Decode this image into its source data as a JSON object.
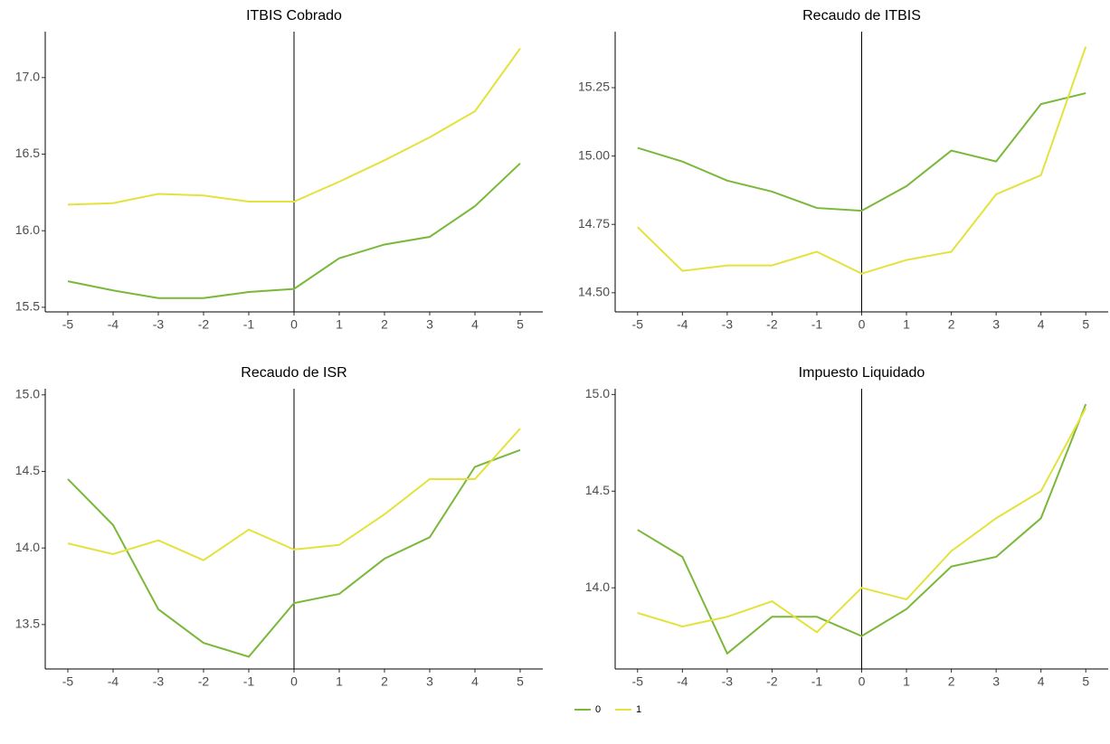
{
  "chart_data": [
    {
      "type": "line",
      "title": "ITBIS Cobrado",
      "x": [
        -5,
        -4,
        -3,
        -2,
        -1,
        0,
        1,
        2,
        3,
        4,
        5
      ],
      "xlim": [
        -5.5,
        5.5
      ],
      "xticks": [
        -5,
        -4,
        -3,
        -2,
        -1,
        0,
        1,
        2,
        3,
        4,
        5
      ],
      "ylim": [
        15.47,
        17.3
      ],
      "yticks": [
        15.5,
        {
          "value": 16,
          "label": "16.0"
        },
        16.5,
        {
          "value": 17,
          "label": "17.0"
        }
      ],
      "vline": 0,
      "legend": "bottom",
      "series": [
        {
          "name": "0",
          "color": "#7ab83a",
          "values": [
            15.67,
            15.61,
            15.56,
            15.56,
            15.6,
            15.62,
            15.82,
            15.91,
            15.96,
            16.16,
            16.44
          ]
        },
        {
          "name": "1",
          "color": "#e4e23c",
          "values": [
            16.17,
            16.18,
            16.24,
            16.23,
            16.19,
            16.19,
            16.32,
            16.46,
            16.61,
            16.78,
            17.19
          ]
        }
      ]
    },
    {
      "type": "line",
      "title": "Recaudo de ITBIS",
      "x": [
        -5,
        -4,
        -3,
        -2,
        -1,
        0,
        1,
        2,
        3,
        4,
        5
      ],
      "xlim": [
        -5.5,
        5.5
      ],
      "xticks": [
        -5,
        -4,
        -3,
        -2,
        -1,
        0,
        1,
        2,
        3,
        4,
        5
      ],
      "ylim": [
        14.43,
        15.455
      ],
      "yticks": [
        {
          "value": 14.5,
          "label": "14.50"
        },
        14.75,
        {
          "value": 15,
          "label": "15.00"
        },
        15.25
      ],
      "vline": 0,
      "series": [
        {
          "name": "0",
          "color": "#7ab83a",
          "values": [
            15.03,
            14.98,
            14.91,
            14.87,
            14.81,
            14.8,
            14.89,
            15.02,
            14.98,
            15.19,
            15.23
          ]
        },
        {
          "name": "1",
          "color": "#e4e23c",
          "values": [
            14.74,
            14.58,
            14.6,
            14.6,
            14.65,
            14.57,
            14.62,
            14.65,
            14.86,
            14.93,
            15.4
          ]
        }
      ]
    },
    {
      "type": "line",
      "title": "Recaudo de ISR",
      "x": [
        -5,
        -4,
        -3,
        -2,
        -1,
        0,
        1,
        2,
        3,
        4,
        5
      ],
      "xlim": [
        -5.5,
        5.5
      ],
      "xticks": [
        -5,
        -4,
        -3,
        -2,
        -1,
        0,
        1,
        2,
        3,
        4,
        5
      ],
      "ylim": [
        13.21,
        15.04
      ],
      "yticks": [
        13.5,
        {
          "value": 14,
          "label": "14.0"
        },
        14.5,
        {
          "value": 15,
          "label": "15.0"
        }
      ],
      "vline": 0,
      "series": [
        {
          "name": "0",
          "color": "#7ab83a",
          "values": [
            14.45,
            14.15,
            13.6,
            13.38,
            13.29,
            13.64,
            13.7,
            13.93,
            14.07,
            14.53,
            14.64
          ]
        },
        {
          "name": "1",
          "color": "#e4e23c",
          "values": [
            14.03,
            13.96,
            14.05,
            13.92,
            14.12,
            13.99,
            14.02,
            14.22,
            14.45,
            14.45,
            14.78
          ]
        }
      ]
    },
    {
      "type": "line",
      "title": "Impuesto Liquidado",
      "x": [
        -5,
        -4,
        -3,
        -2,
        -1,
        0,
        1,
        2,
        3,
        4,
        5
      ],
      "xlim": [
        -5.5,
        5.5
      ],
      "xticks": [
        -5,
        -4,
        -3,
        -2,
        -1,
        0,
        1,
        2,
        3,
        4,
        5
      ],
      "ylim": [
        13.58,
        15.03
      ],
      "yticks": [
        {
          "value": 14,
          "label": "14.0"
        },
        14.5,
        {
          "value": 15,
          "label": "15.0"
        }
      ],
      "vline": 0,
      "series": [
        {
          "name": "0",
          "color": "#7ab83a",
          "values": [
            14.3,
            14.16,
            13.66,
            13.85,
            13.85,
            13.75,
            13.89,
            14.11,
            14.16,
            14.36,
            14.95
          ]
        },
        {
          "name": "1",
          "color": "#e4e23c",
          "values": [
            13.87,
            13.8,
            13.85,
            13.93,
            13.77,
            14.0,
            13.94,
            14.19,
            14.36,
            14.5,
            14.93
          ]
        }
      ]
    }
  ]
}
